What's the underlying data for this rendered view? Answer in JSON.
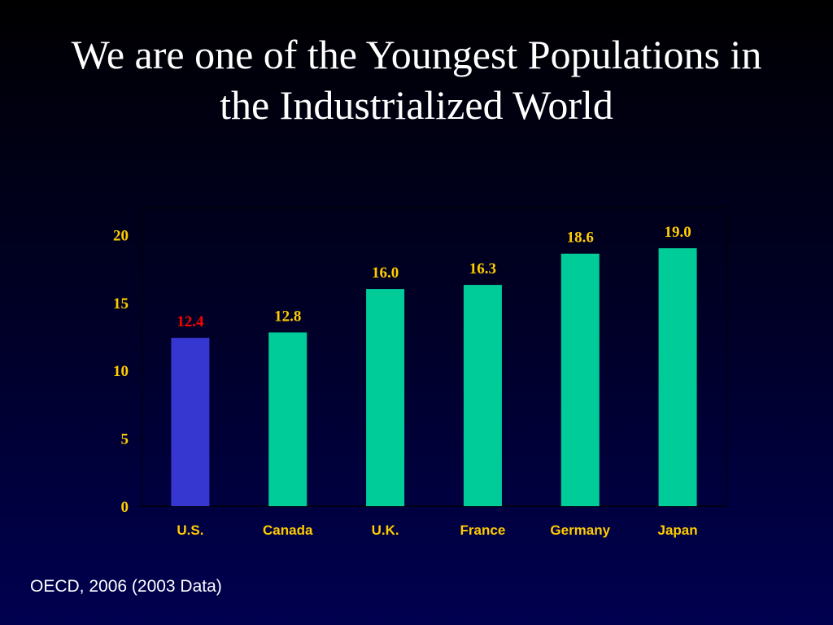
{
  "slide": {
    "title": "We are one of the Youngest Populations in the Industrialized World",
    "source": "OECD, 2006 (2003 Data)"
  },
  "colors": {
    "background": "#00002a",
    "highlight_bar": "#3636d0",
    "default_bar": "#00cc99",
    "highlight_label": "#ff0000",
    "label": "#ffcc00",
    "axis": "#000000"
  },
  "chart_data": {
    "type": "bar",
    "title": "",
    "xlabel": "",
    "ylabel": "",
    "categories": [
      "U.S.",
      "Canada",
      "U.K.",
      "France",
      "Germany",
      "Japan"
    ],
    "values": [
      12.4,
      12.8,
      16.0,
      16.3,
      18.6,
      19.0
    ],
    "value_labels": [
      "12.4",
      "12.8",
      "16.0",
      "16.3",
      "18.6",
      "19.0"
    ],
    "highlight": "U.S.",
    "ylim": [
      0,
      22
    ],
    "yticks": [
      0,
      5,
      10,
      15,
      20
    ],
    "grid": false,
    "legend": "none"
  }
}
